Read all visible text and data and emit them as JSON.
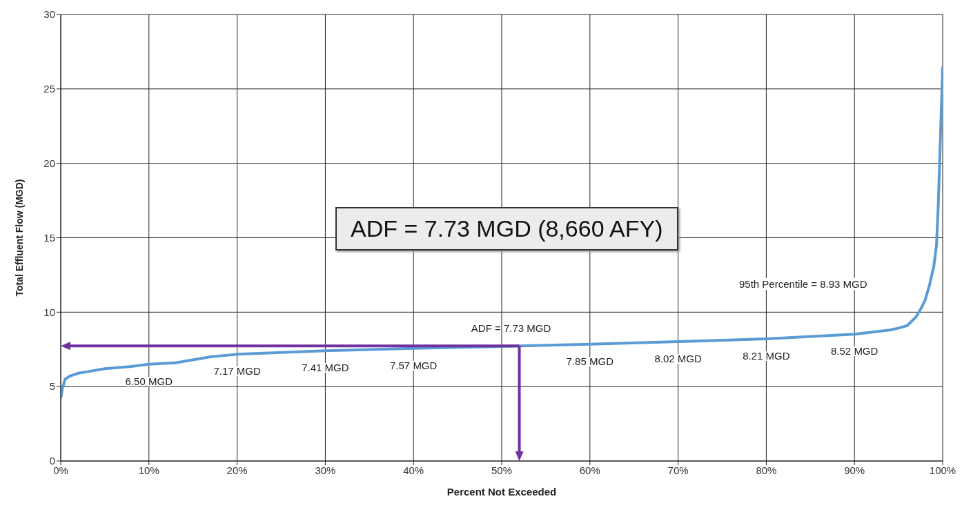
{
  "chart_data": {
    "type": "line",
    "xlabel": "Percent Not Exceeded",
    "ylabel": "Total Effluent Flow (MGD)",
    "x": [
      0,
      0.2,
      0.5,
      1,
      2,
      3,
      5,
      8,
      10,
      13,
      17,
      20,
      30,
      40,
      50,
      60,
      70,
      80,
      90,
      94,
      95,
      96,
      97,
      97.5,
      98,
      98.5,
      99,
      99.3,
      99.5,
      99.7,
      100
    ],
    "series": [
      {
        "color": "#5b9bd5",
        "values": [
          4.2,
          4.9,
          5.5,
          5.7,
          5.9,
          6.0,
          6.2,
          6.35,
          6.5,
          6.6,
          7.0,
          7.17,
          7.41,
          7.57,
          7.7,
          7.85,
          8.02,
          8.21,
          8.52,
          8.8,
          8.93,
          9.1,
          9.7,
          10.2,
          10.8,
          11.8,
          13.1,
          14.5,
          17.2,
          20.9,
          26.5
        ]
      }
    ],
    "xlim": [
      0,
      100
    ],
    "xticks": [
      {
        "value": 0,
        "label": "0%"
      },
      {
        "value": 10,
        "label": "10%"
      },
      {
        "value": 20,
        "label": "20%"
      },
      {
        "value": 30,
        "label": "30%"
      },
      {
        "value": 40,
        "label": "40%"
      },
      {
        "value": 50,
        "label": "50%"
      },
      {
        "value": 60,
        "label": "60%"
      },
      {
        "value": 70,
        "label": "70%"
      },
      {
        "value": 80,
        "label": "80%"
      },
      {
        "value": 90,
        "label": "90%"
      },
      {
        "value": 100,
        "label": "100%"
      }
    ],
    "ylim": [
      0,
      30
    ],
    "yticks": [
      0,
      5,
      10,
      15,
      20,
      25,
      30
    ],
    "grid": true,
    "marker": "none",
    "line_style": "solid",
    "ref_lines": [
      {
        "axis": "y",
        "value": 7.73,
        "label": "ADF = 7.73 MGD",
        "color": "#7030a0"
      }
    ],
    "annotations": [
      "ADF = 7.73 MGD (8,660 AFY)",
      {
        "text": "6.50 MGD",
        "x": 10,
        "y": 6.5
      },
      {
        "text": "7.17 MGD",
        "x": 20,
        "y": 7.17
      },
      {
        "text": "7.41 MGD",
        "x": 30,
        "y": 7.41
      },
      {
        "text": "7.57 MGD",
        "x": 40,
        "y": 7.57
      },
      {
        "text": "7.85 MGD",
        "x": 60,
        "y": 7.85
      },
      {
        "text": "8.02 MGD",
        "x": 70,
        "y": 8.02
      },
      {
        "text": "8.21 MGD",
        "x": 80,
        "y": 8.21
      },
      {
        "text": "8.52 MGD",
        "x": 90,
        "y": 8.52
      },
      "95th Percentile = 8.93 MGD"
    ]
  }
}
